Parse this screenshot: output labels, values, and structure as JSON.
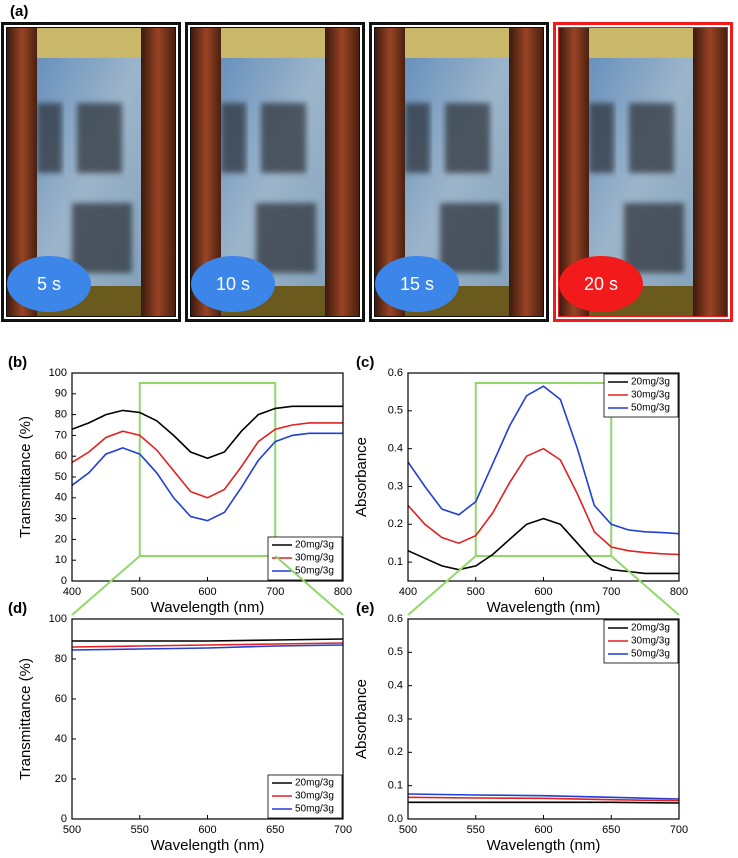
{
  "photo_panel": {
    "label": "(a)",
    "photos": [
      {
        "time": "5 s",
        "color": "#3c86ea",
        "frame": "#111111"
      },
      {
        "time": "10 s",
        "color": "#3c86ea",
        "frame": "#111111"
      },
      {
        "time": "15 s",
        "color": "#3c86ea",
        "frame": "#111111"
      },
      {
        "time": "20 s",
        "color": "#f21a1a",
        "frame": "#f21a1a"
      }
    ]
  },
  "chart_data": [
    {
      "type": "line",
      "label": "(b)",
      "x_label": "Wavelength (nm)",
      "y_label": "Transmittance (%)",
      "x": [
        400,
        425,
        450,
        475,
        500,
        525,
        550,
        575,
        600,
        625,
        650,
        675,
        700,
        725,
        750,
        775,
        800
      ],
      "series": [
        {
          "name": "20mg/3g",
          "color": "#000000",
          "values": [
            73,
            76,
            80,
            82,
            81,
            77,
            70,
            62,
            59,
            62,
            72,
            80,
            83,
            84,
            84,
            84,
            84
          ]
        },
        {
          "name": "30mg/3g",
          "color": "#e32020",
          "values": [
            57,
            62,
            69,
            72,
            70,
            63,
            53,
            43,
            40,
            44,
            55,
            67,
            73,
            75,
            76,
            76,
            76
          ]
        },
        {
          "name": "50mg/3g",
          "color": "#1f3fd8",
          "values": [
            46,
            52,
            61,
            64,
            61,
            52,
            40,
            31,
            29,
            33,
            45,
            58,
            67,
            70,
            71,
            71,
            71
          ]
        }
      ],
      "xlim": [
        400,
        800
      ],
      "xticks": [
        400,
        500,
        600,
        700,
        800
      ],
      "ylim": [
        0,
        100
      ],
      "yticks": [
        0,
        10,
        20,
        30,
        40,
        50,
        60,
        70,
        80,
        90,
        100
      ],
      "legend": "lower right",
      "highlight_x": [
        500,
        700
      ],
      "highlight_color": "#8fd86a"
    },
    {
      "type": "line",
      "label": "(c)",
      "x_label": "Wavelength (nm)",
      "y_label": "Absorbance",
      "x": [
        400,
        425,
        450,
        475,
        500,
        525,
        550,
        575,
        600,
        625,
        650,
        675,
        700,
        725,
        750,
        775,
        800
      ],
      "series": [
        {
          "name": "20mg/3g",
          "color": "#000000",
          "values": [
            0.13,
            0.11,
            0.09,
            0.08,
            0.09,
            0.12,
            0.16,
            0.2,
            0.215,
            0.2,
            0.15,
            0.1,
            0.08,
            0.075,
            0.07,
            0.07,
            0.07
          ]
        },
        {
          "name": "30mg/3g",
          "color": "#e32020",
          "values": [
            0.25,
            0.2,
            0.165,
            0.15,
            0.17,
            0.23,
            0.31,
            0.38,
            0.4,
            0.37,
            0.28,
            0.18,
            0.14,
            0.13,
            0.125,
            0.122,
            0.12
          ]
        },
        {
          "name": "50mg/3g",
          "color": "#1f3fd8",
          "values": [
            0.365,
            0.3,
            0.24,
            0.225,
            0.26,
            0.36,
            0.46,
            0.54,
            0.565,
            0.53,
            0.4,
            0.25,
            0.2,
            0.185,
            0.18,
            0.178,
            0.175
          ]
        }
      ],
      "xlim": [
        400,
        800
      ],
      "xticks": [
        400,
        500,
        600,
        700,
        800
      ],
      "ylim": [
        0.05,
        0.6
      ],
      "yticks": [
        0.1,
        0.2,
        0.3,
        0.4,
        0.5,
        0.6
      ],
      "legend": "upper right",
      "highlight_x": [
        500,
        700
      ],
      "highlight_color": "#8fd86a"
    },
    {
      "type": "line",
      "label": "(d)",
      "x_label": "Wavelength (nm)",
      "y_label": "Transmittance (%)",
      "x": [
        500,
        550,
        600,
        650,
        700
      ],
      "series": [
        {
          "name": "20mg/3g",
          "color": "#000000",
          "values": [
            89,
            89,
            89,
            89.5,
            90
          ]
        },
        {
          "name": "30mg/3g",
          "color": "#e32020",
          "values": [
            86,
            86.5,
            87,
            87.5,
            88
          ]
        },
        {
          "name": "50mg/3g",
          "color": "#1f3fd8",
          "values": [
            84.5,
            85,
            85.5,
            86.5,
            87
          ]
        }
      ],
      "xlim": [
        500,
        700
      ],
      "xticks": [
        500,
        550,
        600,
        650,
        700
      ],
      "ylim": [
        0,
        100
      ],
      "yticks": [
        0,
        20,
        40,
        60,
        80,
        100
      ],
      "legend": "lower right"
    },
    {
      "type": "line",
      "label": "(e)",
      "x_label": "Wavelength (nm)",
      "y_label": "Absorbance",
      "x": [
        500,
        550,
        600,
        650,
        700
      ],
      "series": [
        {
          "name": "20mg/3g",
          "color": "#000000",
          "values": [
            0.05,
            0.05,
            0.05,
            0.05,
            0.048
          ]
        },
        {
          "name": "30mg/3g",
          "color": "#e32020",
          "values": [
            0.065,
            0.063,
            0.062,
            0.058,
            0.055
          ]
        },
        {
          "name": "50mg/3g",
          "color": "#1f3fd8",
          "values": [
            0.075,
            0.072,
            0.07,
            0.065,
            0.06
          ]
        }
      ],
      "xlim": [
        500,
        700
      ],
      "xticks": [
        500,
        550,
        600,
        650,
        700
      ],
      "ylim": [
        0,
        0.6
      ],
      "yticks": [
        {
          "value": 0,
          "label": "0.0"
        },
        0.1,
        0.2,
        0.3,
        0.4,
        0.5,
        0.6
      ],
      "legend": "upper right"
    }
  ]
}
